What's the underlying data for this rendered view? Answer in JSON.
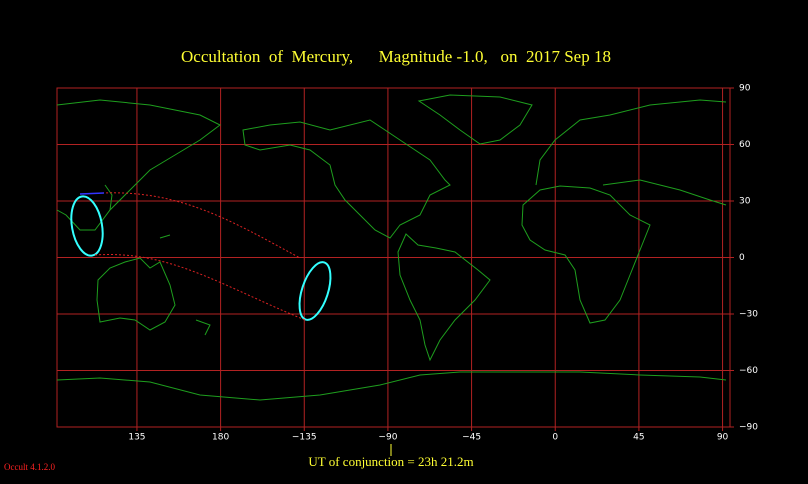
{
  "title": "Occultation  of  Mercury,      Magnitude -1.0,   on  2017 Sep 18",
  "footer": "UT of conjunction = 23h 21.2m",
  "version": "Occult 4.1.2.0",
  "map": {
    "xlim": [
      92,
      454
    ],
    "ylim": [
      -90,
      90
    ],
    "xticks": [
      135,
      180,
      {
        "value": 225,
        "label": "−135"
      },
      {
        "value": 270,
        "label": "−90"
      },
      {
        "value": 315,
        "label": "−45"
      },
      {
        "value": 360,
        "label": "0"
      },
      {
        "value": 405,
        "label": "45"
      },
      {
        "value": 450,
        "label": "90"
      }
    ],
    "yticks": [
      90,
      60,
      30,
      0,
      {
        "value": -30,
        "label": "−30"
      },
      {
        "value": -60,
        "label": "−60"
      },
      {
        "value": -90,
        "label": "−90"
      }
    ]
  }
}
